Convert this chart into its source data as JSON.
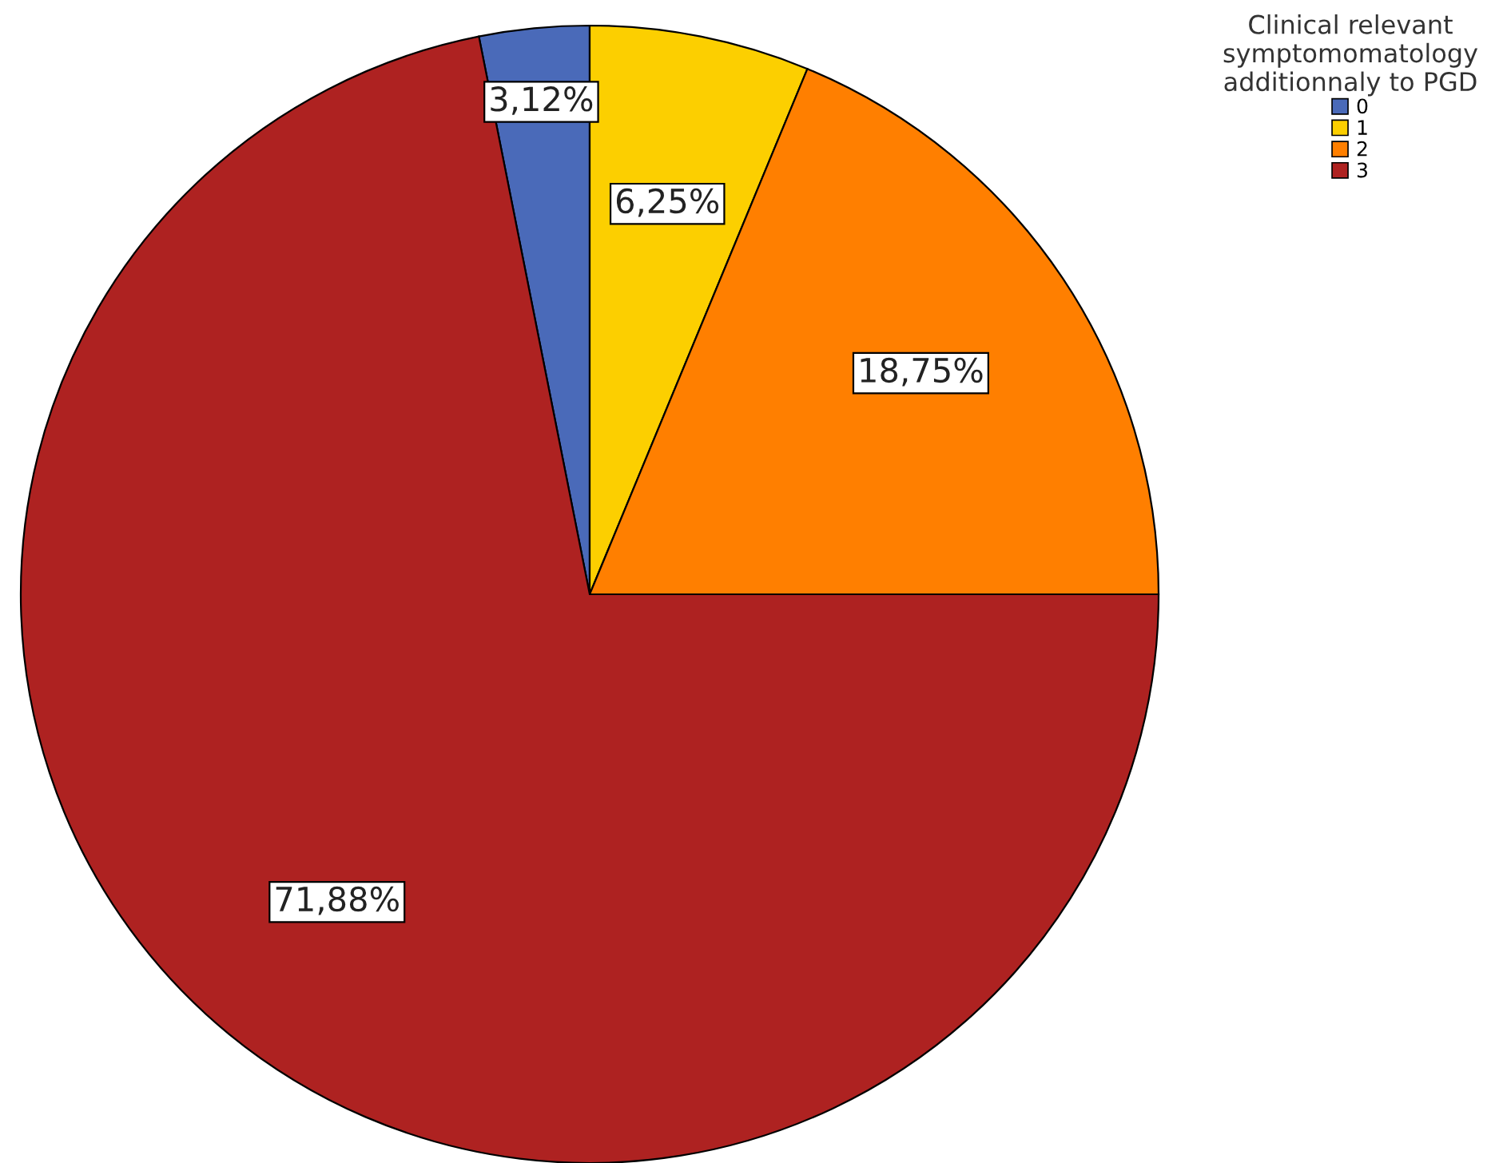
{
  "chart_data": {
    "type": "pie",
    "legend_title": "Clinical relevant\nsymptomomatology\nadditionnaly to PGD",
    "categories": [
      "0",
      "1",
      "2",
      "3"
    ],
    "values": [
      3.12,
      6.25,
      18.75,
      71.88
    ],
    "value_labels": [
      "3,12%",
      "6,25%",
      "18,75%",
      "71,88%"
    ],
    "colors": [
      "#4a6ab9",
      "#fccf00",
      "#ff7f00",
      "#ae2221"
    ],
    "legend": "top right"
  }
}
